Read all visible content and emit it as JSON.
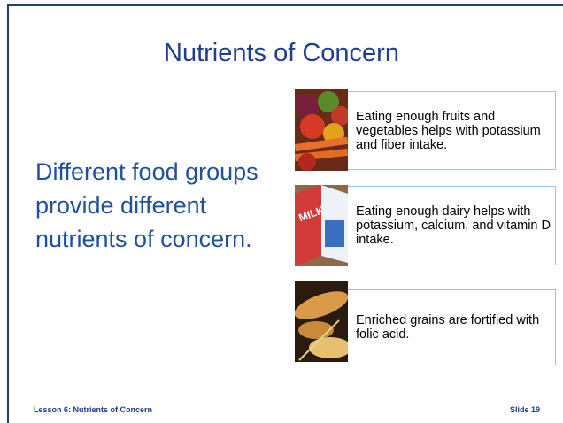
{
  "header": {
    "title": "Nutrients of Concern"
  },
  "body": {
    "text": "Different food groups provide different nutrients of concern."
  },
  "items": [
    {
      "text": "Eating enough fruits and vegetables helps with potassium and fiber intake."
    },
    {
      "text": "Eating enough dairy helps with potassium, calcium, and vitamin D intake."
    },
    {
      "text": "Enriched grains are fortified with folic acid."
    }
  ],
  "footer": {
    "left": "Lesson 6: Nutrients of Concern",
    "right": "Slide 19"
  }
}
